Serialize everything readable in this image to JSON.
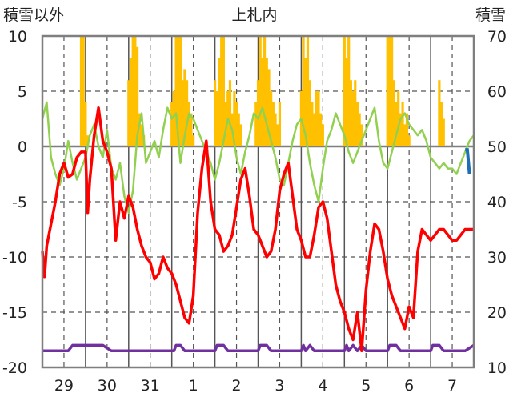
{
  "chart_data": {
    "type": "line",
    "title": "上札内",
    "left_axis_label": "積雪以外",
    "right_axis_label": "積雪",
    "left_ylim": [
      -20,
      10
    ],
    "left_ticks": [
      "10",
      "5",
      "0",
      "-5",
      "-10",
      "-15",
      "-20"
    ],
    "right_ylim": [
      10,
      70
    ],
    "right_ticks": [
      "70",
      "60",
      "50",
      "40",
      "30",
      "20",
      "10"
    ],
    "x_range": [
      0,
      10
    ],
    "x_tick_labels": [
      "29",
      "30",
      "31",
      "1",
      "2",
      "3",
      "4",
      "5",
      "6",
      "7"
    ],
    "grid": true,
    "colors": {
      "red": "#ff0000",
      "green": "#92d050",
      "purple": "#7030a0",
      "bars": "#ffc000",
      "blue": "#1f6fb5",
      "zero_line": "#7f7f7f",
      "grid": "#555555",
      "frame": "#7f7f7f"
    },
    "series": [
      {
        "color": "red",
        "x": [
          0.0,
          0.05,
          0.1,
          0.2,
          0.3,
          0.4,
          0.5,
          0.6,
          0.7,
          0.8,
          0.9,
          1.0,
          1.05,
          1.1,
          1.2,
          1.3,
          1.4,
          1.5,
          1.6,
          1.7,
          1.8,
          1.9,
          2.0,
          2.1,
          2.2,
          2.3,
          2.4,
          2.5,
          2.6,
          2.7,
          2.8,
          2.9,
          3.0,
          3.1,
          3.2,
          3.3,
          3.4,
          3.5,
          3.6,
          3.7,
          3.8,
          3.9,
          4.0,
          4.1,
          4.2,
          4.3,
          4.4,
          4.5,
          4.6,
          4.7,
          4.8,
          4.9,
          5.0,
          5.1,
          5.2,
          5.3,
          5.4,
          5.5,
          5.6,
          5.7,
          5.8,
          5.9,
          6.0,
          6.1,
          6.2,
          6.3,
          6.4,
          6.5,
          6.6,
          6.7,
          6.8,
          6.9,
          7.0,
          7.1,
          7.2,
          7.3,
          7.4,
          7.5,
          7.6,
          7.7,
          7.8,
          7.9,
          8.0,
          8.1,
          8.2,
          8.3,
          8.4,
          8.5,
          8.6,
          8.7,
          8.8,
          8.9,
          9.0,
          9.1,
          9.2,
          9.3,
          9.4,
          9.5,
          9.6,
          9.7,
          9.8,
          9.9,
          10.0
        ],
        "y": [
          -9.5,
          -11.8,
          -9.0,
          -7.0,
          -5.0,
          -2.5,
          -1.5,
          -2.8,
          -2.5,
          -1.0,
          -0.5,
          -0.5,
          -6.0,
          -3.0,
          1.0,
          3.5,
          0.5,
          -0.5,
          -2.0,
          -8.5,
          -5.0,
          -6.5,
          -4.5,
          -5.5,
          -7.5,
          -9.0,
          -10.0,
          -10.5,
          -12.0,
          -11.5,
          -10.0,
          -11.0,
          -11.5,
          -12.5,
          -14.0,
          -15.5,
          -16.0,
          -13.5,
          -6.0,
          -2.0,
          0.5,
          -5.0,
          -7.5,
          -8.0,
          -9.5,
          -9.0,
          -8.0,
          -5.5,
          -3.0,
          -2.0,
          -4.5,
          -7.5,
          -8.0,
          -9.0,
          -10.0,
          -9.5,
          -7.5,
          -4.0,
          -2.5,
          -1.5,
          -4.5,
          -7.5,
          -8.5,
          -10.0,
          -10.0,
          -8.0,
          -5.5,
          -5.0,
          -6.5,
          -9.5,
          -12.5,
          -14.0,
          -15.0,
          -16.5,
          -17.5,
          -15.0,
          -18.5,
          -13.0,
          -9.5,
          -7.0,
          -7.5,
          -9.5,
          -12.0,
          -13.5,
          -14.5,
          -15.5,
          -16.5,
          -14.5,
          -15.5,
          -9.5,
          -7.5,
          -8.0,
          -8.5,
          -8.0,
          -7.5,
          -7.5,
          -8.0,
          -8.5,
          -8.5,
          -8.0,
          -7.5,
          -7.5,
          -7.5
        ]
      },
      {
        "color": "green",
        "x": [
          0.0,
          0.1,
          0.2,
          0.3,
          0.4,
          0.5,
          0.6,
          0.7,
          0.8,
          0.9,
          1.0,
          1.1,
          1.2,
          1.3,
          1.4,
          1.5,
          1.6,
          1.7,
          1.8,
          1.9,
          2.0,
          2.1,
          2.2,
          2.3,
          2.4,
          2.5,
          2.6,
          2.7,
          2.8,
          2.9,
          3.0,
          3.1,
          3.2,
          3.3,
          3.4,
          3.5,
          3.6,
          3.7,
          3.8,
          3.9,
          4.0,
          4.1,
          4.2,
          4.3,
          4.4,
          4.5,
          4.6,
          4.7,
          4.8,
          4.9,
          5.0,
          5.1,
          5.2,
          5.3,
          5.4,
          5.5,
          5.6,
          5.7,
          5.8,
          5.9,
          6.0,
          6.1,
          6.2,
          6.3,
          6.4,
          6.5,
          6.6,
          6.7,
          6.8,
          6.9,
          7.0,
          7.1,
          7.2,
          7.3,
          7.4,
          7.5,
          7.6,
          7.7,
          7.8,
          7.9,
          8.0,
          8.1,
          8.2,
          8.3,
          8.4,
          8.5,
          8.6,
          8.7,
          8.8,
          8.9,
          9.0,
          9.1,
          9.2,
          9.3,
          9.4,
          9.5,
          9.6,
          9.7,
          9.8,
          9.9,
          10.0
        ],
        "y": [
          2.5,
          4.0,
          -1.0,
          -2.5,
          -3.5,
          -2.0,
          0.5,
          -1.5,
          -3.0,
          -2.0,
          -1.0,
          1.0,
          2.0,
          0.0,
          -1.0,
          1.5,
          -2.0,
          -3.0,
          -1.5,
          -4.5,
          -6.0,
          -4.0,
          1.0,
          3.0,
          -1.5,
          -0.5,
          0.5,
          -1.0,
          1.5,
          3.5,
          2.5,
          3.0,
          -1.5,
          1.0,
          3.0,
          2.5,
          1.5,
          0.5,
          -0.5,
          -1.5,
          -3.0,
          -1.5,
          0.5,
          2.5,
          1.5,
          -1.0,
          -2.5,
          -0.5,
          1.0,
          3.0,
          2.5,
          3.5,
          2.0,
          0.5,
          -1.0,
          -3.0,
          -3.5,
          -1.5,
          0.5,
          2.0,
          2.5,
          1.0,
          -1.5,
          -3.5,
          -5.0,
          -2.0,
          0.5,
          1.5,
          3.0,
          2.0,
          1.0,
          -0.5,
          -1.5,
          -0.5,
          0.5,
          1.5,
          2.5,
          3.5,
          0.5,
          -1.5,
          -2.0,
          -0.5,
          1.0,
          2.5,
          3.0,
          2.0,
          1.5,
          1.0,
          1.5,
          0.5,
          -1.0,
          -1.5,
          -2.0,
          -1.5,
          -2.0,
          -2.0,
          -2.5,
          -1.5,
          -0.5,
          0.5,
          1.0
        ]
      },
      {
        "color": "purple",
        "x": [
          0.0,
          0.2,
          0.4,
          0.6,
          0.7,
          0.8,
          1.0,
          1.2,
          1.4,
          1.6,
          1.8,
          2.0,
          2.2,
          2.4,
          2.6,
          2.8,
          3.0,
          3.05,
          3.1,
          3.2,
          3.3,
          3.6,
          3.8,
          4.0,
          4.05,
          4.1,
          4.2,
          4.3,
          4.6,
          4.8,
          5.0,
          5.05,
          5.1,
          5.2,
          5.3,
          5.6,
          5.8,
          6.0,
          6.05,
          6.1,
          6.2,
          6.3,
          6.6,
          6.8,
          7.0,
          7.05,
          7.1,
          7.2,
          7.3,
          7.4,
          7.5,
          7.6,
          7.8,
          8.0,
          8.05,
          8.1,
          8.2,
          8.3,
          8.6,
          8.8,
          9.0,
          9.05,
          9.1,
          9.2,
          9.3,
          9.6,
          9.8,
          10.0
        ],
        "y": [
          -18.5,
          -18.5,
          -18.5,
          -18.5,
          -18.0,
          -18.0,
          -18.0,
          -18.0,
          -18.0,
          -18.5,
          -18.5,
          -18.5,
          -18.5,
          -18.5,
          -18.5,
          -18.5,
          -18.5,
          -18.5,
          -18.0,
          -18.0,
          -18.5,
          -18.5,
          -18.5,
          -18.5,
          -18.0,
          -18.0,
          -18.0,
          -18.5,
          -18.5,
          -18.5,
          -18.5,
          -18.0,
          -18.0,
          -18.0,
          -18.5,
          -18.5,
          -18.5,
          -18.5,
          -18.0,
          -18.5,
          -18.0,
          -18.5,
          -18.5,
          -18.5,
          -18.5,
          -18.0,
          -18.5,
          -18.0,
          -18.5,
          -18.0,
          -18.5,
          -18.5,
          -18.5,
          -18.5,
          -18.0,
          -18.0,
          -18.0,
          -18.5,
          -18.5,
          -18.5,
          -18.5,
          -18.0,
          -18.0,
          -18.0,
          -18.5,
          -18.5,
          -18.5,
          -18.0
        ]
      }
    ],
    "snow_bars": {
      "axis": "right",
      "color": "bars",
      "base": 50,
      "x": [
        0.9,
        0.95,
        1.0,
        1.05,
        2.0,
        2.05,
        2.1,
        2.15,
        2.2,
        2.25,
        2.3,
        2.35,
        3.0,
        3.05,
        3.1,
        3.15,
        3.2,
        3.25,
        3.3,
        3.35,
        3.4,
        3.45,
        3.5,
        4.0,
        4.05,
        4.1,
        4.15,
        4.2,
        4.25,
        4.3,
        4.35,
        4.4,
        4.45,
        4.5,
        4.55,
        4.6,
        4.95,
        5.0,
        5.05,
        5.1,
        5.15,
        5.2,
        5.25,
        5.3,
        5.35,
        5.4,
        5.45,
        5.5,
        6.0,
        6.05,
        6.1,
        6.15,
        6.2,
        6.25,
        6.3,
        6.35,
        6.4,
        6.45,
        6.5,
        7.0,
        7.05,
        7.1,
        7.15,
        7.2,
        7.25,
        7.3,
        7.35,
        7.4,
        8.0,
        8.05,
        8.1,
        8.15,
        8.2,
        8.25,
        8.3,
        8.35,
        8.4,
        8.45,
        8.5,
        9.2,
        9.25,
        9.3
      ],
      "y": [
        70,
        70,
        58,
        52,
        62,
        66,
        70,
        70,
        68,
        56,
        54,
        52,
        58,
        60,
        70,
        70,
        70,
        62,
        64,
        62,
        58,
        56,
        52,
        62,
        60,
        66,
        70,
        70,
        58,
        60,
        62,
        56,
        60,
        58,
        56,
        54,
        58,
        62,
        70,
        66,
        70,
        66,
        64,
        60,
        58,
        56,
        54,
        58,
        60,
        70,
        66,
        70,
        62,
        58,
        56,
        60,
        60,
        56,
        54,
        70,
        66,
        70,
        62,
        60,
        62,
        58,
        56,
        54,
        70,
        70,
        70,
        62,
        58,
        60,
        56,
        58,
        54,
        56,
        52,
        62,
        58,
        55
      ]
    },
    "blue_segments": [
      {
        "x": [
          9.8,
          9.85,
          9.9
        ],
        "y": [
          -0.3,
          -0.3,
          -2.5
        ],
        "axis": "left"
      }
    ]
  }
}
